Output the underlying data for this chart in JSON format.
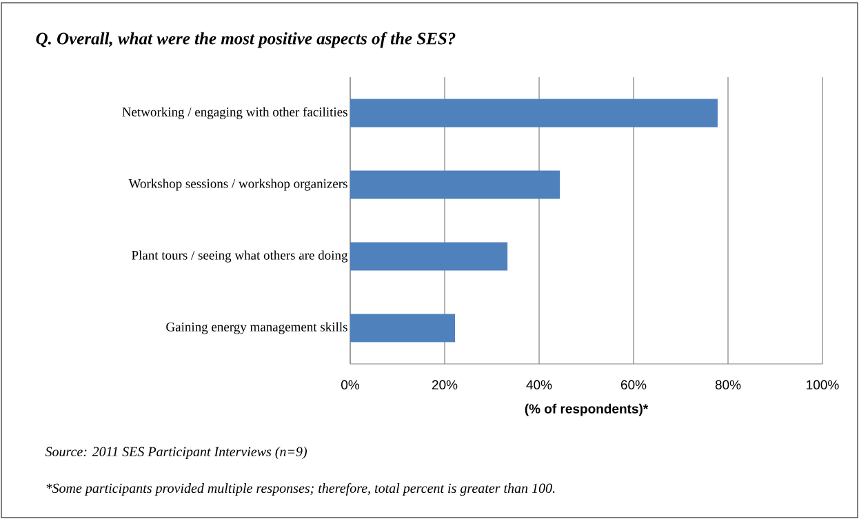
{
  "chart_data": {
    "type": "bar",
    "orientation": "horizontal",
    "title": "Q.  Overall, what were the most positive aspects of the SES?",
    "categories": [
      "Networking / engaging with other facilities",
      "Workshop sessions / workshop organizers",
      "Plant tours / seeing what others are doing",
      "Gaining energy management skills"
    ],
    "values": [
      77.8,
      44.4,
      33.3,
      22.2
    ],
    "color": "#4f81bd",
    "xlim": [
      0,
      100
    ],
    "xticks": [
      {
        "value": 0,
        "label": "0%"
      },
      {
        "value": 20,
        "label": "20%"
      },
      {
        "value": 40,
        "label": "40%"
      },
      {
        "value": 60,
        "label": "60%"
      },
      {
        "value": 80,
        "label": "80%"
      },
      {
        "value": 100,
        "label": "100%"
      }
    ],
    "xlabel": "(% of respondents)*",
    "grid": "x",
    "annotations": [
      "Source: 2011 SES Participant Interviews (n=9)",
      "*Some participants provided multiple responses; therefore, total percent is greater than 100."
    ]
  }
}
